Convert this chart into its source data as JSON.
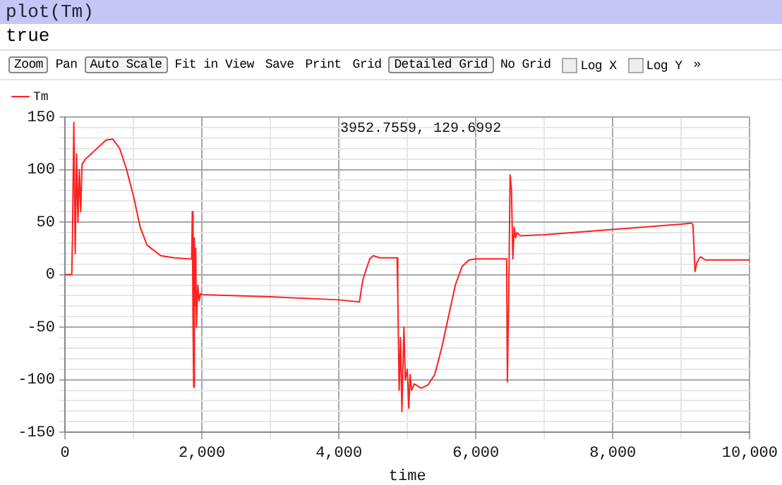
{
  "chart_data": {
    "type": "line",
    "xlabel": "time",
    "legend": "top left",
    "grid": true,
    "marker": "none",
    "line_style": "solid",
    "annotations": [
      "plot(Tm)",
      "true",
      "Zoom",
      "Pan",
      "Auto Scale",
      "Fit in View",
      "Save",
      "Print",
      "Grid",
      "Detailed Grid",
      "No Grid",
      "Log X",
      "Log Y",
      "»",
      "3952.7559, 129.6992"
    ],
    "xlim": [
      0,
      10000
    ],
    "xticks": [
      0,
      {
        "value": 1000,
        "label": null
      },
      {
        "value": 2000,
        "label": "2,000"
      },
      {
        "value": 3000,
        "label": null
      },
      {
        "value": 4000,
        "label": "4,000"
      },
      {
        "value": 5000,
        "label": null
      },
      {
        "value": 6000,
        "label": "6,000"
      },
      {
        "value": 7000,
        "label": null
      },
      {
        "value": 8000,
        "label": "8,000"
      },
      {
        "value": 9000,
        "label": null
      },
      {
        "value": 10000,
        "label": "10,000"
      }
    ],
    "ylim": [
      -150,
      150
    ],
    "yticks": [
      -150,
      {
        "value": -140,
        "label": null
      },
      {
        "value": -130,
        "label": null
      },
      {
        "value": -120,
        "label": null
      },
      {
        "value": -110,
        "label": null
      },
      -100,
      {
        "value": -90,
        "label": null
      },
      {
        "value": -80,
        "label": null
      },
      {
        "value": -70,
        "label": null
      },
      {
        "value": -60,
        "label": null
      },
      -50,
      {
        "value": -40,
        "label": null
      },
      {
        "value": -30,
        "label": null
      },
      {
        "value": -20,
        "label": null
      },
      {
        "value": -10,
        "label": null
      },
      0,
      {
        "value": 10,
        "label": null
      },
      {
        "value": 20,
        "label": null
      },
      {
        "value": 30,
        "label": null
      },
      {
        "value": 40,
        "label": null
      },
      50,
      {
        "value": 60,
        "label": null
      },
      {
        "value": 70,
        "label": null
      },
      {
        "value": 80,
        "label": null
      },
      {
        "value": 90,
        "label": null
      },
      100,
      {
        "value": 110,
        "label": null
      },
      {
        "value": 120,
        "label": null
      },
      {
        "value": 130,
        "label": null
      },
      {
        "value": 140,
        "label": null
      },
      150
    ],
    "series": [
      {
        "name": "Tm",
        "color": "#ff2020",
        "x": [
          0,
          100,
          110,
          130,
          150,
          170,
          190,
          210,
          230,
          250,
          300,
          600,
          700,
          800,
          900,
          1000,
          1100,
          1200,
          1400,
          1600,
          1800,
          1850,
          1860,
          1870,
          1880,
          1890,
          1900,
          1910,
          1920,
          1940,
          1960,
          1980,
          2000,
          3000,
          4000,
          4300,
          4350,
          4450,
          4500,
          4600,
          4850,
          4860,
          4880,
          4900,
          4920,
          4950,
          4970,
          5000,
          5020,
          5040,
          5060,
          5100,
          5200,
          5300,
          5400,
          5500,
          5600,
          5700,
          5800,
          5900,
          6000,
          6450,
          6460,
          6480,
          6500,
          6520,
          6540,
          6560,
          6580,
          6600,
          6650,
          7000,
          8000,
          9000,
          9150,
          9170,
          9200,
          9230,
          9280,
          9350,
          9500,
          10000
        ],
        "values": [
          0,
          0,
          35,
          145,
          20,
          115,
          50,
          100,
          60,
          105,
          110,
          128,
          129,
          120,
          100,
          75,
          45,
          28,
          18,
          16,
          15,
          15,
          60,
          -40,
          -107,
          35,
          -30,
          25,
          -50,
          -10,
          -25,
          -18,
          -19,
          -21,
          -24,
          -26,
          -5,
          15,
          18,
          16,
          16,
          -20,
          -110,
          -60,
          -130,
          -50,
          -100,
          -90,
          -127,
          -95,
          -110,
          -104,
          -108,
          -105,
          -95,
          -70,
          -40,
          -10,
          8,
          14,
          15,
          15,
          -102,
          -20,
          95,
          80,
          15,
          45,
          35,
          40,
          37,
          38,
          43,
          48,
          49,
          47,
          3,
          12,
          17,
          14,
          14,
          14
        ]
      }
    ]
  }
}
